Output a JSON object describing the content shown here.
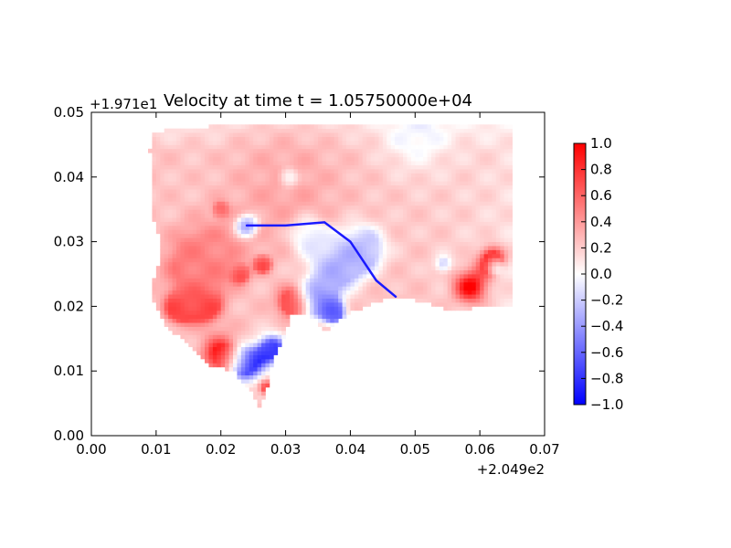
{
  "chart_data": {
    "type": "heatmap",
    "title": "Velocity at time t = 1.05750000e+04",
    "x_offset_label": "+2.049e2",
    "y_offset_label": "+1.971e1",
    "xlim": [
      0.0,
      0.07
    ],
    "ylim": [
      0.0,
      0.05
    ],
    "x_ticks": [
      "0.00",
      "0.01",
      "0.02",
      "0.03",
      "0.04",
      "0.05",
      "0.06",
      "0.07"
    ],
    "y_ticks": [
      "0.00",
      "0.01",
      "0.02",
      "0.03",
      "0.04",
      "0.05"
    ],
    "colorbar": {
      "range": [
        -1.0,
        1.0
      ],
      "ticks": [
        "−1.0",
        "−0.8",
        "−0.6",
        "−0.4",
        "−0.2",
        "0.0",
        "0.2",
        "0.4",
        "0.6",
        "0.8",
        "1.0"
      ],
      "colormap": "bwr",
      "colors": [
        "#0000ff",
        "#ffffff",
        "#ff0000"
      ]
    },
    "domain_outline": [
      [
        0.0095,
        0.047
      ],
      [
        0.02,
        0.048
      ],
      [
        0.035,
        0.048
      ],
      [
        0.05,
        0.048
      ],
      [
        0.065,
        0.048
      ],
      [
        0.065,
        0.02
      ],
      [
        0.055,
        0.0195
      ],
      [
        0.05,
        0.021
      ],
      [
        0.045,
        0.021
      ],
      [
        0.04,
        0.019
      ],
      [
        0.036,
        0.016
      ],
      [
        0.034,
        0.0185
      ],
      [
        0.031,
        0.019
      ],
      [
        0.03,
        0.016
      ],
      [
        0.028,
        0.0115
      ],
      [
        0.027,
        0.0065
      ],
      [
        0.026,
        0.004
      ],
      [
        0.025,
        0.0065
      ],
      [
        0.022,
        0.01
      ],
      [
        0.018,
        0.011
      ],
      [
        0.015,
        0.014
      ],
      [
        0.0115,
        0.017
      ],
      [
        0.0095,
        0.021
      ],
      [
        0.0095,
        0.024
      ],
      [
        0.0105,
        0.027
      ],
      [
        0.0105,
        0.031
      ],
      [
        0.0095,
        0.034
      ],
      [
        0.0095,
        0.04
      ],
      [
        0.009,
        0.044
      ]
    ],
    "features": [
      {
        "x": 0.03,
        "y": 0.038,
        "value": 0.35,
        "r": 0.016
      },
      {
        "x": 0.016,
        "y": 0.026,
        "value": 0.55,
        "r": 0.007
      },
      {
        "x": 0.02,
        "y": 0.0125,
        "value": 1.0,
        "r": 0.0035
      },
      {
        "x": 0.0175,
        "y": 0.02,
        "value": 0.85,
        "r": 0.0025
      },
      {
        "x": 0.0135,
        "y": 0.0195,
        "value": 0.8,
        "r": 0.0025
      },
      {
        "x": 0.031,
        "y": 0.0205,
        "value": 0.95,
        "r": 0.0025
      },
      {
        "x": 0.024,
        "y": 0.011,
        "value": -1.0,
        "r": 0.003
      },
      {
        "x": 0.028,
        "y": 0.0135,
        "value": -0.85,
        "r": 0.0025
      },
      {
        "x": 0.035,
        "y": 0.021,
        "value": -0.7,
        "r": 0.003
      },
      {
        "x": 0.038,
        "y": 0.0265,
        "value": -0.6,
        "r": 0.004
      },
      {
        "x": 0.042,
        "y": 0.029,
        "value": -0.45,
        "r": 0.0035
      },
      {
        "x": 0.0335,
        "y": 0.031,
        "value": -0.4,
        "r": 0.0025
      },
      {
        "x": 0.024,
        "y": 0.0325,
        "value": -0.95,
        "r": 0.0015
      },
      {
        "x": 0.0265,
        "y": 0.0265,
        "value": 0.9,
        "r": 0.0012
      },
      {
        "x": 0.023,
        "y": 0.025,
        "value": 0.95,
        "r": 0.0012
      },
      {
        "x": 0.0585,
        "y": 0.023,
        "value": 1.0,
        "r": 0.0035
      },
      {
        "x": 0.062,
        "y": 0.0275,
        "value": 0.95,
        "r": 0.0025
      },
      {
        "x": 0.0625,
        "y": 0.026,
        "value": -0.55,
        "r": 0.0014
      },
      {
        "x": 0.0545,
        "y": 0.0265,
        "value": -0.3,
        "r": 0.0015
      },
      {
        "x": 0.05,
        "y": 0.047,
        "value": -0.1,
        "r": 0.006
      },
      {
        "x": 0.027,
        "y": 0.0075,
        "value": 0.85,
        "r": 0.0015
      },
      {
        "x": 0.02,
        "y": 0.035,
        "value": 0.8,
        "r": 0.001
      },
      {
        "x": 0.0305,
        "y": 0.04,
        "value": -0.35,
        "r": 0.0012
      },
      {
        "x": 0.0375,
        "y": 0.019,
        "value": -0.8,
        "r": 0.0018
      }
    ],
    "filaments": [
      {
        "points": [
          [
            0.024,
            0.0325
          ],
          [
            0.03,
            0.0325
          ],
          [
            0.036,
            0.033
          ],
          [
            0.04,
            0.03
          ],
          [
            0.044,
            0.024
          ],
          [
            0.047,
            0.0215
          ]
        ],
        "value": -0.9
      }
    ],
    "base_value": 0.28
  }
}
